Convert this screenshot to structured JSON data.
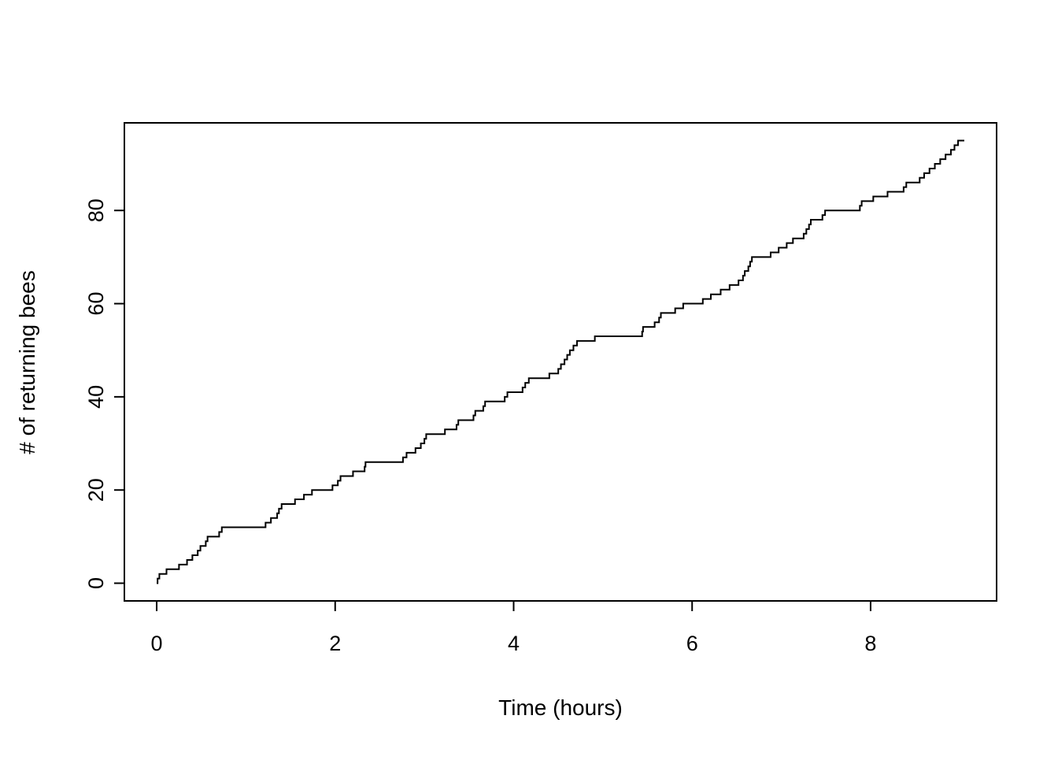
{
  "figure": {
    "background_color": "#ffffff",
    "line_color": "#000000",
    "description": "R-style base graphics step plot of cumulative number of returning bees over time"
  },
  "chart_data": {
    "type": "line",
    "subtype": "step-cumulative-count",
    "title": "",
    "xlabel": "Time (hours)",
    "ylabel": "# of returning bees",
    "xlim": [
      0,
      9.05
    ],
    "ylim": [
      0,
      95
    ],
    "x_ticks": [
      0,
      2,
      4,
      6,
      8
    ],
    "y_ticks": [
      0,
      20,
      40,
      60,
      80
    ],
    "grid": false,
    "legend": false,
    "start_point": {
      "t": 0,
      "count": 0
    },
    "end_time": 9.05,
    "final_count": 95,
    "event_times": [
      0.01,
      0.03,
      0.11,
      0.25,
      0.34,
      0.4,
      0.46,
      0.49,
      0.55,
      0.57,
      0.7,
      0.73,
      1.22,
      1.28,
      1.35,
      1.37,
      1.4,
      1.55,
      1.65,
      1.74,
      1.97,
      2.03,
      2.06,
      2.2,
      2.33,
      2.34,
      2.76,
      2.8,
      2.9,
      2.96,
      3.0,
      3.02,
      3.23,
      3.36,
      3.38,
      3.55,
      3.57,
      3.66,
      3.68,
      3.9,
      3.93,
      4.1,
      4.13,
      4.17,
      4.4,
      4.5,
      4.53,
      4.57,
      4.6,
      4.63,
      4.67,
      4.71,
      4.91,
      5.44,
      5.45,
      5.58,
      5.63,
      5.65,
      5.81,
      5.9,
      6.12,
      6.21,
      6.32,
      6.42,
      6.52,
      6.57,
      6.59,
      6.63,
      6.65,
      6.67,
      6.88,
      6.97,
      7.06,
      7.13,
      7.25,
      7.28,
      7.31,
      7.33,
      7.46,
      7.49,
      7.88,
      7.9,
      8.03,
      8.19,
      8.37,
      8.4,
      8.55,
      8.6,
      8.66,
      8.72,
      8.78,
      8.84,
      8.9,
      8.94,
      8.98
    ],
    "notable_plateaus": [
      {
        "count": 12,
        "from": 0.73,
        "to": 1.21
      },
      {
        "count": 20,
        "from": 1.74,
        "to": 1.96
      },
      {
        "count": 26,
        "from": 2.34,
        "to": 2.74
      },
      {
        "count": 44,
        "from": 4.18,
        "to": 4.38
      },
      {
        "count": 53,
        "from": 4.91,
        "to": 5.42
      },
      {
        "count": 60,
        "from": 5.9,
        "to": 6.1
      },
      {
        "count": 70,
        "from": 6.67,
        "to": 6.87
      },
      {
        "count": 80,
        "from": 7.49,
        "to": 7.86
      }
    ]
  }
}
